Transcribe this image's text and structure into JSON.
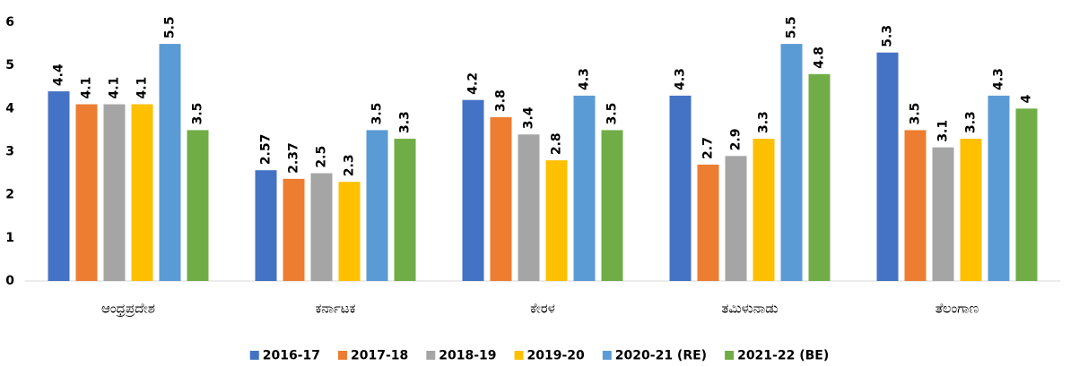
{
  "chart_data": {
    "type": "bar",
    "categories": [
      "ಆಂಧ್ರಪ್ರದೇಶ",
      "ಕರ್ನಾಟಕ",
      "ಕೇರಳ",
      "ತಮಿಳುನಾಡು",
      "ತೆಲಂಗಾಣ"
    ],
    "series": [
      {
        "name": "2016-17",
        "color": "#4472c4",
        "values": [
          4.4,
          2.57,
          4.2,
          4.3,
          5.3
        ]
      },
      {
        "name": "2017-18",
        "color": "#ed7d31",
        "values": [
          4.1,
          2.37,
          3.8,
          2.7,
          3.5
        ]
      },
      {
        "name": "2018-19",
        "color": "#a5a5a5",
        "values": [
          4.1,
          2.5,
          3.4,
          2.9,
          3.1
        ]
      },
      {
        "name": "2019-20",
        "color": "#ffc000",
        "values": [
          4.1,
          2.3,
          2.8,
          3.3,
          3.3
        ]
      },
      {
        "name": "2020-21 (RE)",
        "color": "#5b9bd5",
        "values": [
          5.5,
          3.5,
          4.3,
          5.5,
          4.3
        ]
      },
      {
        "name": "2021-22 (BE)",
        "color": "#70ad47",
        "values": [
          3.5,
          3.3,
          3.5,
          4.8,
          4
        ]
      }
    ],
    "ylim": [
      0,
      6
    ],
    "yticks": [
      0,
      1,
      2,
      3,
      4,
      5,
      6
    ],
    "grid": false,
    "legend": "bottom"
  }
}
